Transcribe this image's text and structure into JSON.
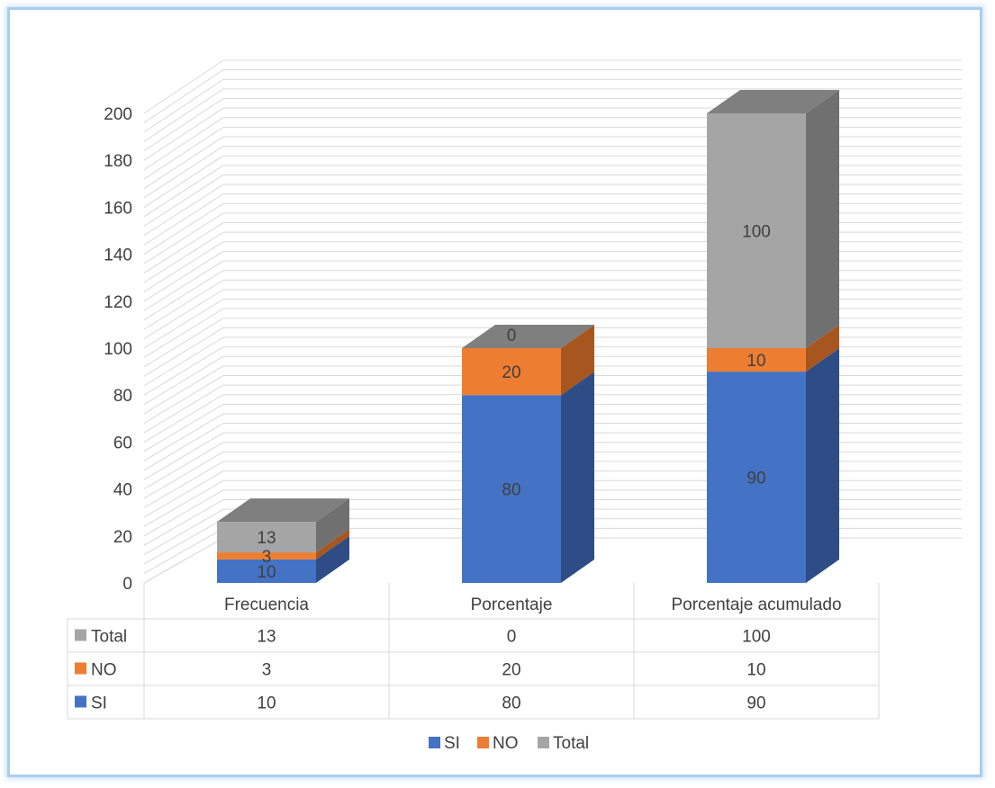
{
  "chart_data": {
    "type": "bar",
    "stacked": true,
    "three_d": true,
    "categories": [
      "Frecuencia",
      "Porcentaje",
      "Porcentaje acumulado"
    ],
    "series": [
      {
        "name": "SI",
        "values": [
          10,
          80,
          90
        ],
        "color": "#4472c4",
        "side_color": "#2e4d86"
      },
      {
        "name": "NO",
        "values": [
          3,
          20,
          10
        ],
        "color": "#ed7d31",
        "side_color": "#a85620"
      },
      {
        "name": "Total",
        "values": [
          13,
          0,
          100
        ],
        "color": "#a5a5a5",
        "side_color": "#707070"
      }
    ],
    "y_ticks": [
      0,
      20,
      40,
      60,
      80,
      100,
      120,
      140,
      160,
      180,
      200
    ],
    "ylim": [
      0,
      200
    ],
    "grid": true,
    "legend_position": "bottom",
    "data_table": true,
    "data_table_row_order": [
      "Total",
      "NO",
      "SI"
    ],
    "grid_color": "#d9d9d9",
    "text_color": "#404040"
  }
}
